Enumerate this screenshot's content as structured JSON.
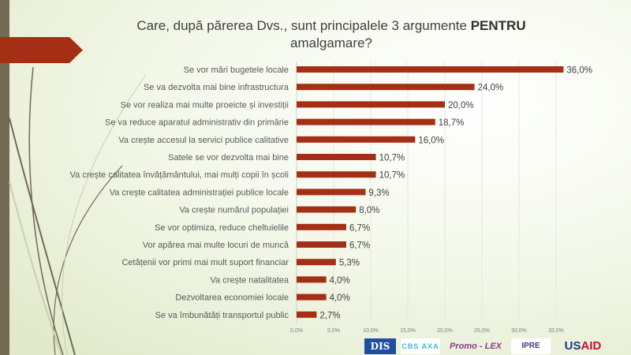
{
  "title": {
    "main": "Care, după părerea Dvs., sunt principalele 3 argumente",
    "bold": "PENTRU",
    "line2": "amalgamare?"
  },
  "colors": {
    "bar": "#a52f14",
    "sidebar": "#736a53"
  },
  "chart_data": {
    "type": "bar",
    "orientation": "horizontal",
    "title": "Care, după părerea Dvs., sunt principalele 3 argumente PENTRU amalgamare?",
    "categories": [
      "Se vor mări bugetele locale",
      "Se va dezvolta mai bine infrastructura",
      "Se vor realiza mai multe proeicte și investiții",
      "Se va reduce aparatul administrativ din primărie",
      "Va crește accesul la servici publice calitative",
      "Satele se vor dezvolta mai bine",
      "Va crește calitatea învățământului, mai mulți copii în școli",
      "Va crește calitatea administrației publice locale",
      "Va crește numărul populației",
      "Se vor optimiza, reduce cheltuielile",
      "Vor apărea mai multe locuri de muncă",
      "Cetățenii vor primi mai mult suport financiar",
      "Va crește natalitatea",
      "Dezvoltarea economiei locale",
      "Se va îmbunătăți transportul public"
    ],
    "values": [
      36.0,
      24.0,
      20.0,
      18.7,
      16.0,
      10.7,
      10.7,
      9.3,
      8.0,
      6.7,
      6.7,
      5.3,
      4.0,
      4.0,
      2.7
    ],
    "value_labels": [
      "36,0%",
      "24,0%",
      "20,0%",
      "18,7%",
      "16,0%",
      "10,7%",
      "10,7%",
      "9,3%",
      "8,0%",
      "6,7%",
      "6,7%",
      "5,3%",
      "4,0%",
      "4,0%",
      "2,7%"
    ],
    "xticks": [
      0,
      5,
      10,
      15,
      20,
      25,
      30,
      35
    ],
    "xtick_labels": [
      "0,0%",
      "5,0%",
      "10,0%",
      "15,0%",
      "20,0%",
      "25,0%",
      "30,0%",
      "35,0%"
    ],
    "xlim": [
      0,
      40
    ],
    "grid": true,
    "legend": "none"
  },
  "logos": {
    "dis": "DIS",
    "cbs": "CBS AXA",
    "promo": "Promo - LEX",
    "ipre": "IPRE",
    "usaid_a": "US",
    "usaid_b": "AID"
  }
}
